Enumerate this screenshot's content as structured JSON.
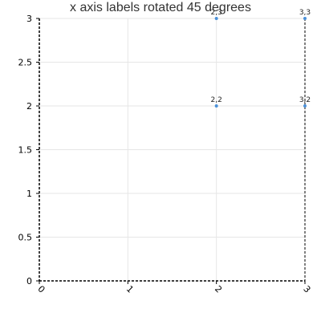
{
  "chart_data": {
    "type": "scatter",
    "title": "x axis labels rotated 45 degrees",
    "xlabel": "",
    "ylabel": "",
    "xlim": [
      0,
      3
    ],
    "ylim": [
      0,
      3
    ],
    "x_ticks": [
      "0",
      "1",
      "2",
      "3"
    ],
    "x_tick_rotation_deg": 45,
    "y_ticks": [
      "0",
      "0.5",
      "1",
      "1.5",
      "2",
      "2.5",
      "3"
    ],
    "grid": true,
    "marker_color": "#4a90d9",
    "points": [
      {
        "x": 2,
        "y": 3,
        "label": "2,3"
      },
      {
        "x": 3,
        "y": 3,
        "label": "3,3"
      },
      {
        "x": 2,
        "y": 2,
        "label": "2,2"
      },
      {
        "x": 3,
        "y": 2,
        "label": "3,2"
      }
    ]
  }
}
